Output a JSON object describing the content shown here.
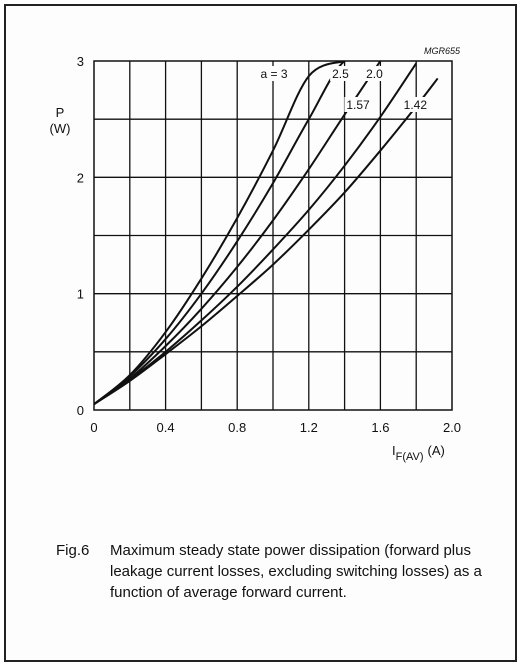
{
  "figure": {
    "code": "MGR655",
    "number": "Fig.6",
    "caption": "Maximum steady state power dissipation (forward plus leakage current losses, excluding switching losses) as a function of average forward current."
  },
  "chart_data": {
    "type": "line",
    "title": "",
    "ylabel_line1": "P",
    "ylabel_line2": "(W)",
    "xlabel_main": "I",
    "xlabel_sub": "F(AV)",
    "xlabel_unit": "(A)",
    "xlim": [
      0,
      2.0
    ],
    "ylim": [
      0,
      3
    ],
    "x_ticks": [
      "0",
      "0.4",
      "0.8",
      "1.2",
      "1.6",
      "2.0"
    ],
    "y_ticks": [
      "0",
      "1",
      "2",
      "3"
    ],
    "grid": true,
    "series": [
      {
        "name": "a = 3",
        "x": [
          0,
          0.2,
          0.4,
          0.6,
          0.8,
          1.0,
          1.2,
          1.4
        ],
        "y": [
          0.05,
          0.3,
          0.67,
          1.13,
          1.65,
          2.23,
          2.87,
          3.0
        ]
      },
      {
        "name": "2.5",
        "x": [
          0,
          0.2,
          0.4,
          0.6,
          0.8,
          1.0,
          1.2,
          1.4,
          1.6
        ],
        "y": [
          0.05,
          0.29,
          0.61,
          1.0,
          1.45,
          1.95,
          2.5,
          3.0,
          3.0
        ]
      },
      {
        "name": "2.0",
        "x": [
          0,
          0.2,
          0.4,
          0.6,
          0.8,
          1.0,
          1.2,
          1.4,
          1.6
        ],
        "y": [
          0.05,
          0.27,
          0.55,
          0.87,
          1.23,
          1.63,
          2.07,
          2.54,
          3.0
        ]
      },
      {
        "name": "1.57",
        "x": [
          0,
          0.2,
          0.4,
          0.6,
          0.8,
          1.0,
          1.2,
          1.4,
          1.6,
          1.8
        ],
        "y": [
          0.05,
          0.26,
          0.5,
          0.77,
          1.06,
          1.38,
          1.72,
          2.1,
          2.52,
          2.98
        ]
      },
      {
        "name": "1.42",
        "x": [
          0,
          0.2,
          0.4,
          0.6,
          0.8,
          1.0,
          1.2,
          1.4,
          1.6,
          1.8,
          1.92
        ],
        "y": [
          0.05,
          0.25,
          0.48,
          0.72,
          0.98,
          1.25,
          1.55,
          1.87,
          2.23,
          2.61,
          2.85
        ]
      }
    ]
  }
}
